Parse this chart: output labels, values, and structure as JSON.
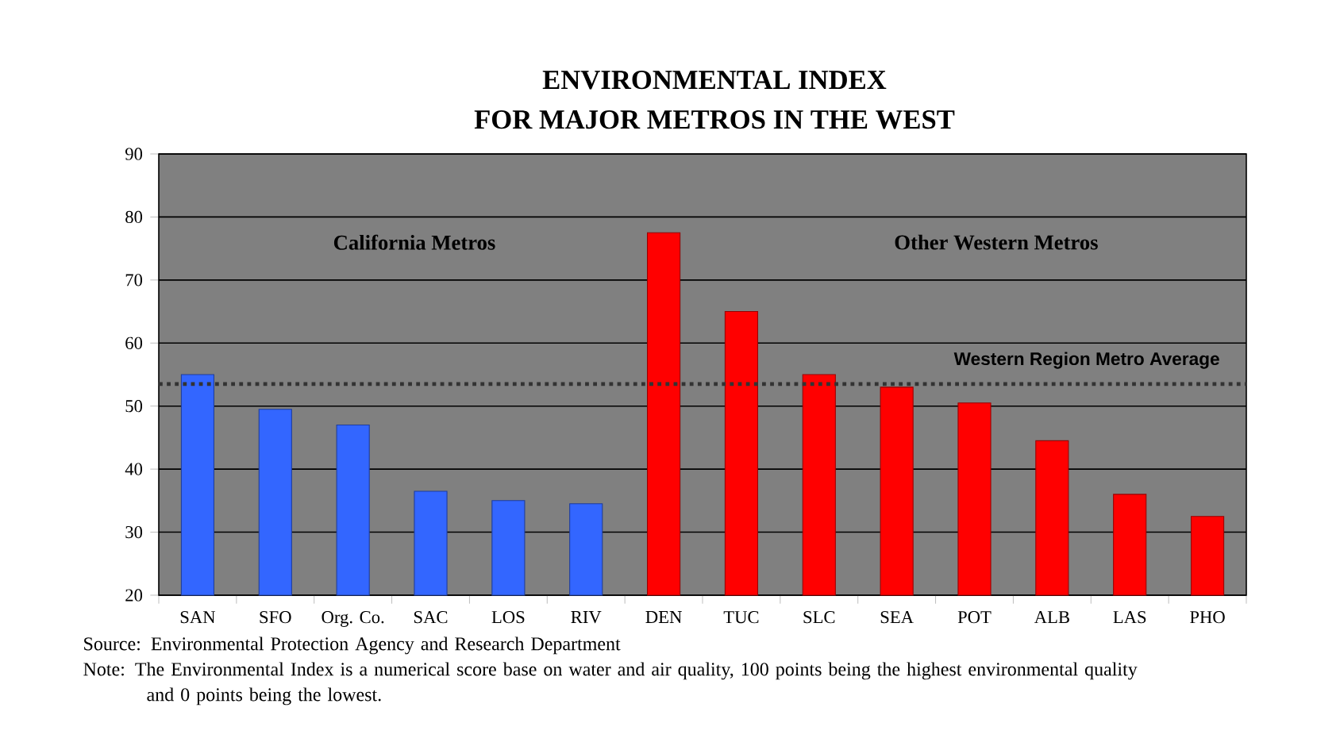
{
  "chart_data": {
    "type": "bar",
    "title": "ENVIRONMENTAL INDEX",
    "subtitle": "FOR MAJOR METROS IN THE WEST",
    "categories": [
      "SAN",
      "SFO",
      "Org. Co.",
      "SAC",
      "LOS",
      "RIV",
      "DEN",
      "TUC",
      "SLC",
      "SEA",
      "POT",
      "ALB",
      "LAS",
      "PHO"
    ],
    "values": [
      55,
      49.5,
      47,
      36.5,
      35,
      34.5,
      77.5,
      65,
      55,
      53,
      50.5,
      44.5,
      36,
      32.5
    ],
    "colors": [
      "#3366ff",
      "#3366ff",
      "#3366ff",
      "#3366ff",
      "#3366ff",
      "#3366ff",
      "#ff0000",
      "#ff0000",
      "#ff0000",
      "#ff0000",
      "#ff0000",
      "#ff0000",
      "#ff0000",
      "#ff0000"
    ],
    "ylim": [
      20,
      90
    ],
    "yticks": [
      20,
      30,
      40,
      50,
      60,
      70,
      80,
      90
    ],
    "grid": "y",
    "ref_lines": [
      {
        "axis": "y",
        "value": 53.5,
        "label": "Western Region Metro Average",
        "color": "#333333",
        "line_style": "dotted"
      }
    ],
    "annotations": [
      "California Metros",
      "Other Western Metros",
      "Source: Environmental Protection Agency and Research Department",
      "Note: The Environmental Index is a numerical score base on water and air quality, 100 points being the highest environmental quality and 0 points being the lowest."
    ]
  }
}
